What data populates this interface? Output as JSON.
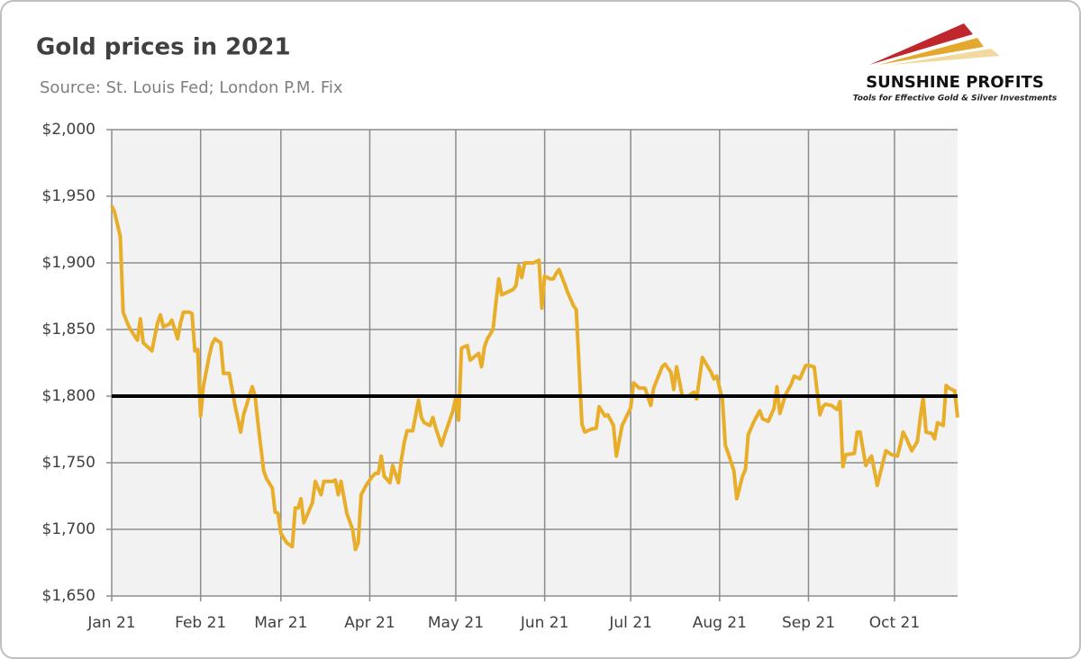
{
  "chart_data": {
    "type": "line",
    "title": "Gold prices in 2021",
    "subtitle": "Source: St. Louis Fed; London P.M. Fix",
    "x": [
      0,
      1,
      3,
      4,
      6,
      8,
      9,
      10,
      11,
      13,
      14,
      16,
      17,
      18,
      20,
      21,
      23,
      24,
      25,
      27,
      28,
      29,
      30,
      31,
      32,
      34,
      35,
      36,
      38,
      39,
      41,
      43,
      45,
      46,
      49,
      50,
      51,
      53,
      54,
      56,
      57,
      58,
      59,
      61,
      63,
      64,
      65,
      66,
      67,
      70,
      71,
      73,
      74,
      77,
      78,
      79,
      80,
      82,
      84,
      85,
      86,
      87,
      89,
      91,
      92,
      93,
      94,
      95,
      97,
      98,
      100,
      101,
      102,
      103,
      105,
      107,
      108,
      109,
      111,
      112,
      113,
      115,
      116,
      119,
      120,
      121,
      122,
      124,
      125,
      128,
      129,
      130,
      131,
      133,
      134,
      135,
      136,
      140,
      141,
      142,
      143,
      144,
      147,
      149,
      150,
      151,
      153,
      154,
      155,
      156,
      158,
      159,
      161,
      162,
      164,
      165,
      167,
      169,
      170,
      172,
      173,
      175,
      176,
      178,
      181,
      182,
      184,
      186,
      188,
      189,
      192,
      193,
      195,
      196,
      197,
      199,
      201,
      203,
      204,
      206,
      209,
      210,
      211,
      213,
      214,
      215,
      217,
      218,
      220,
      221,
      222,
      224,
      226,
      227,
      229,
      231,
      232,
      233,
      235,
      237,
      238,
      240,
      242,
      243,
      245,
      247,
      248,
      249,
      251,
      253,
      254,
      255,
      256,
      259,
      260,
      261,
      263,
      264,
      265,
      267,
      268,
      270,
      272,
      274,
      275,
      276,
      277,
      279,
      281,
      282,
      283,
      284,
      286,
      287,
      288,
      290,
      291,
      292,
      294,
      295
    ],
    "values": [
      1943,
      1938,
      1920,
      1863,
      1852,
      1845,
      1842,
      1858,
      1840,
      1836,
      1834,
      1855,
      1861,
      1852,
      1854,
      1857,
      1843,
      1855,
      1863,
      1863,
      1862,
      1834,
      1835,
      1785,
      1808,
      1830,
      1839,
      1843,
      1840,
      1817,
      1817,
      1793,
      1773,
      1786,
      1807,
      1800,
      1780,
      1744,
      1738,
      1731,
      1713,
      1712,
      1697,
      1690,
      1687,
      1716,
      1716,
      1723,
      1705,
      1720,
      1736,
      1726,
      1736,
      1736,
      1737,
      1726,
      1736,
      1712,
      1700,
      1685,
      1690,
      1726,
      1734,
      1740,
      1742,
      1742,
      1755,
      1740,
      1735,
      1748,
      1735,
      1752,
      1765,
      1774,
      1774,
      1797,
      1784,
      1780,
      1778,
      1784,
      1776,
      1763,
      1770,
      1789,
      1799,
      1782,
      1836,
      1838,
      1827,
      1832,
      1822,
      1837,
      1843,
      1850,
      1870,
      1888,
      1876,
      1880,
      1883,
      1898,
      1889,
      1900,
      1900,
      1902,
      1866,
      1890,
      1888,
      1888,
      1892,
      1895,
      1884,
      1878,
      1868,
      1865,
      1779,
      1773,
      1775,
      1776,
      1792,
      1785,
      1786,
      1778,
      1755,
      1778,
      1791,
      1810,
      1806,
      1806,
      1793,
      1806,
      1822,
      1824,
      1818,
      1805,
      1822,
      1800,
      1800,
      1803,
      1798,
      1829,
      1818,
      1813,
      1815,
      1797,
      1763,
      1757,
      1744,
      1723,
      1740,
      1745,
      1771,
      1781,
      1789,
      1783,
      1781,
      1791,
      1807,
      1787,
      1801,
      1809,
      1815,
      1813,
      1823,
      1823,
      1822,
      1786,
      1792,
      1794,
      1793,
      1790,
      1796,
      1747,
      1756,
      1757,
      1773,
      1773,
      1748,
      1752,
      1755,
      1733,
      1742,
      1759,
      1756,
      1755,
      1763,
      1773,
      1769,
      1759,
      1766,
      1784,
      1799,
      1773,
      1772,
      1768,
      1780,
      1778,
      1808,
      1806,
      1804,
      1784
    ],
    "color": "#e8ae2a",
    "reference_line": 1800,
    "reference_color": "#000000",
    "xlim": [
      0,
      295
    ],
    "xticks": [
      {
        "value": 0,
        "label": "Jan 21"
      },
      {
        "value": 31,
        "label": "Feb 21"
      },
      {
        "value": 59,
        "label": "Mar 21"
      },
      {
        "value": 90,
        "label": "Apr 21"
      },
      {
        "value": 120,
        "label": "May 21"
      },
      {
        "value": 151,
        "label": "Jun 21"
      },
      {
        "value": 181,
        "label": "Jul 21"
      },
      {
        "value": 212,
        "label": "Aug 21"
      },
      {
        "value": 243,
        "label": "Sep 21"
      },
      {
        "value": 273,
        "label": "Oct 21"
      }
    ],
    "ylim": [
      1650,
      2000
    ],
    "yticks": [
      {
        "value": 1650,
        "label": "$1,650"
      },
      {
        "value": 1700,
        "label": "$1,700"
      },
      {
        "value": 1750,
        "label": "$1,750"
      },
      {
        "value": 1800,
        "label": "$1,800"
      },
      {
        "value": 1850,
        "label": "$1,850"
      },
      {
        "value": 1900,
        "label": "$1,900"
      },
      {
        "value": 1950,
        "label": "$1,950"
      },
      {
        "value": 2000,
        "label": "$2,000"
      }
    ],
    "grid": true
  },
  "logo": {
    "name": "SUNSHINE PROFITS",
    "tagline": "Tools for Effective Gold & Silver Investments"
  }
}
